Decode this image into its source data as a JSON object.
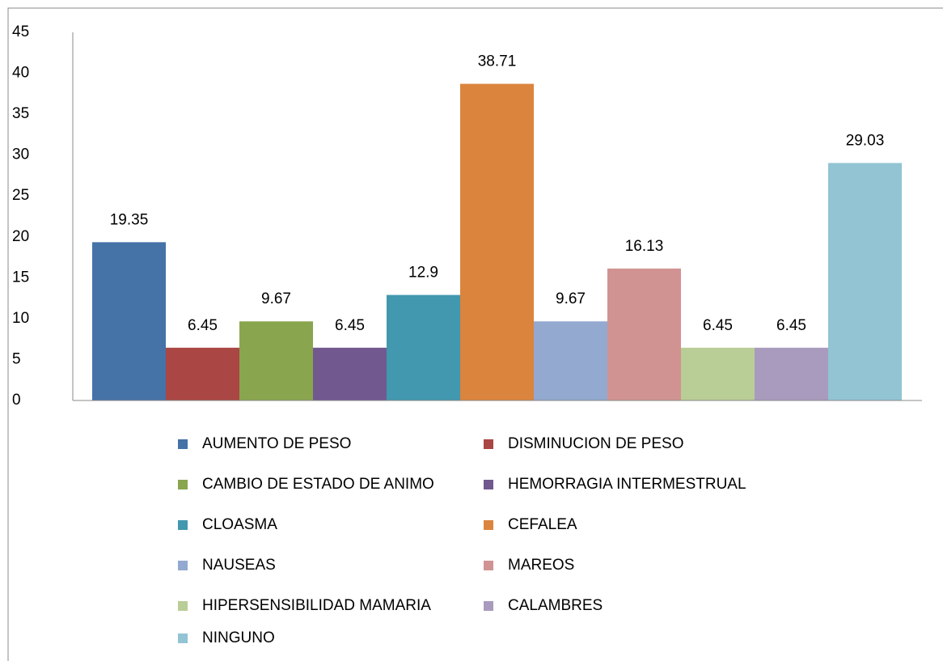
{
  "chart_data": {
    "type": "bar",
    "series": [
      {
        "name": "AUMENTO DE PESO",
        "color": "#4572a7",
        "values": [
          19.35
        ]
      },
      {
        "name": "DISMINUCION DE PESO",
        "color": "#aa4643",
        "values": [
          6.45
        ]
      },
      {
        "name": "CAMBIO DE ESTADO DE ANIMO",
        "color": "#89a54e",
        "values": [
          9.67
        ]
      },
      {
        "name": "HEMORRAGIA INTERMESTRUAL",
        "color": "#71588f",
        "values": [
          6.45
        ]
      },
      {
        "name": "CLOASMA",
        "color": "#4198af",
        "values": [
          12.9
        ]
      },
      {
        "name": "CEFALEA",
        "color": "#db843d",
        "values": [
          38.71
        ]
      },
      {
        "name": "NAUSEAS",
        "color": "#93a9cf",
        "values": [
          9.67
        ]
      },
      {
        "name": "MAREOS",
        "color": "#d19392",
        "values": [
          16.13
        ]
      },
      {
        "name": "HIPERSENSIBILIDAD MAMARIA",
        "color": "#b9cd96",
        "values": [
          6.45
        ]
      },
      {
        "name": "CALAMBRES",
        "color": "#a99bbd",
        "values": [
          6.45
        ]
      },
      {
        "name": "NINGUNO",
        "color": "#92c4d3",
        "values": [
          29.03
        ]
      }
    ],
    "ylim": [
      0,
      45
    ],
    "yticks": [
      0,
      5,
      10,
      15,
      20,
      25,
      30,
      35,
      40,
      45
    ],
    "grid": false,
    "legend": "bottom"
  }
}
